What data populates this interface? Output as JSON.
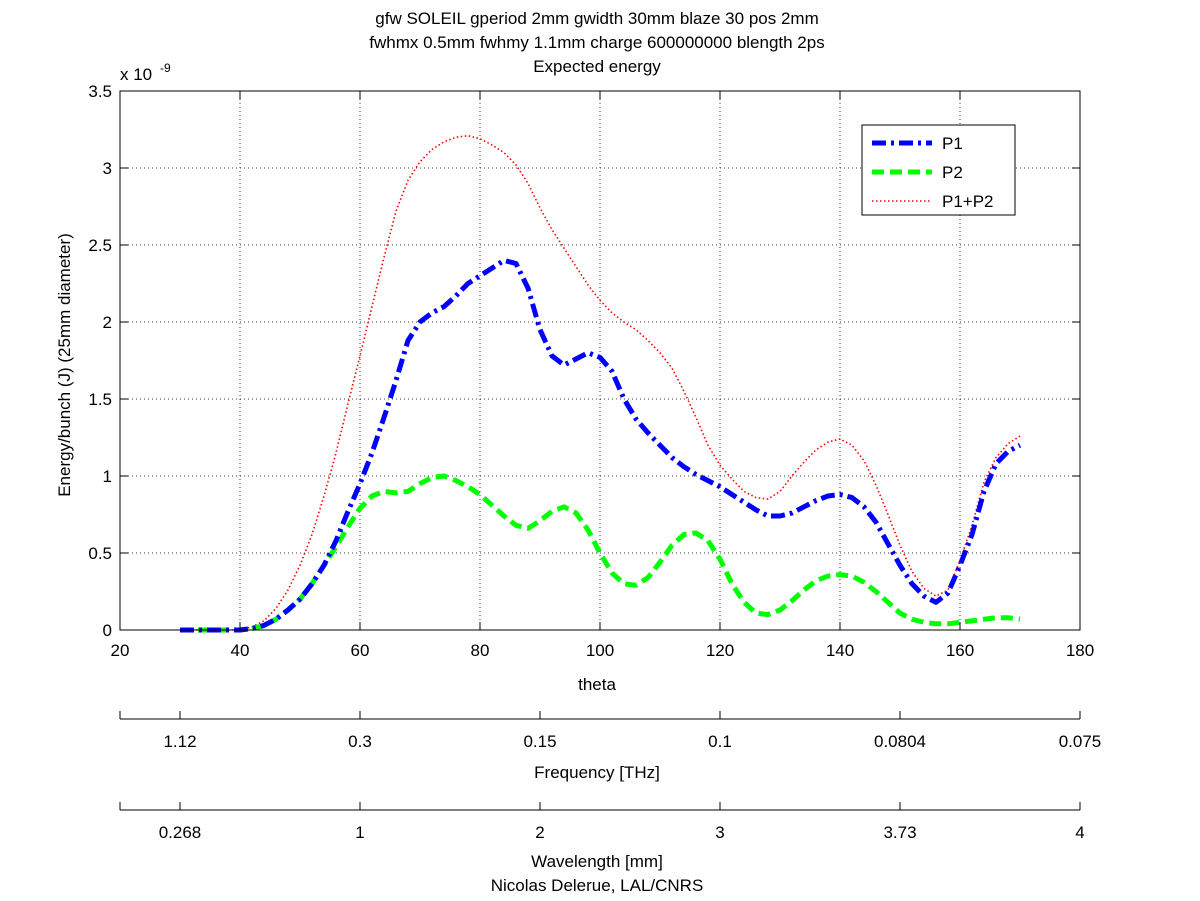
{
  "chart_data": {
    "type": "line",
    "title_lines": [
      "gfw SOLEIL gperiod 2mm gwidth 30mm blaze 30 pos 2mm",
      "fwhmx 0.5mm fwhmy 1.1mm charge 600000000 blength 2ps",
      "Expected energy"
    ],
    "xlabel": "theta",
    "ylabel": "Energy/bunch (J)  (25mm diameter)",
    "y_multiplier_base": "x 10",
    "y_multiplier_exp": "-9",
    "xlim": [
      20,
      180
    ],
    "ylim": [
      0,
      3.5
    ],
    "x_ticks": [
      20,
      40,
      60,
      80,
      100,
      120,
      140,
      160,
      180
    ],
    "x_tick_labels": [
      "20",
      "40",
      "60",
      "80",
      "100",
      "120",
      "140",
      "160",
      "180"
    ],
    "y_ticks": [
      0,
      0.5,
      1,
      1.5,
      2,
      2.5,
      3,
      3.5
    ],
    "y_tick_labels": [
      "0",
      "0.5",
      "1",
      "1.5",
      "2",
      "2.5",
      "3",
      "3.5"
    ],
    "grid": true,
    "legend_position": "top-right",
    "series": [
      {
        "name": "P1",
        "color": "#0000ff",
        "style": "dashdot",
        "x": [
          30,
          35,
          40,
          42,
          44,
          46,
          48,
          50,
          52,
          54,
          56,
          58,
          60,
          62,
          64,
          66,
          68,
          70,
          72,
          74,
          76,
          78,
          80,
          82,
          84,
          86,
          88,
          90,
          92,
          94,
          96,
          98,
          100,
          102,
          104,
          106,
          108,
          110,
          112,
          114,
          116,
          118,
          120,
          122,
          124,
          126,
          128,
          130,
          132,
          134,
          136,
          138,
          140,
          142,
          144,
          146,
          148,
          150,
          152,
          154,
          156,
          158,
          160,
          162,
          164,
          166,
          168,
          170
        ],
        "y": [
          0,
          0,
          0,
          0.01,
          0.03,
          0.07,
          0.13,
          0.2,
          0.3,
          0.42,
          0.58,
          0.77,
          0.95,
          1.15,
          1.38,
          1.62,
          1.88,
          2.0,
          2.06,
          2.1,
          2.17,
          2.25,
          2.3,
          2.35,
          2.4,
          2.38,
          2.22,
          1.95,
          1.78,
          1.72,
          1.76,
          1.8,
          1.77,
          1.68,
          1.5,
          1.37,
          1.28,
          1.2,
          1.12,
          1.06,
          1.01,
          0.97,
          0.93,
          0.88,
          0.83,
          0.78,
          0.74,
          0.74,
          0.76,
          0.8,
          0.84,
          0.87,
          0.88,
          0.86,
          0.8,
          0.7,
          0.56,
          0.42,
          0.3,
          0.22,
          0.18,
          0.24,
          0.42,
          0.62,
          0.9,
          1.08,
          1.16,
          1.2
        ]
      },
      {
        "name": "P2",
        "color": "#00ff00",
        "style": "dashed",
        "x": [
          30,
          35,
          40,
          42,
          44,
          46,
          48,
          50,
          52,
          54,
          56,
          58,
          60,
          62,
          64,
          66,
          68,
          70,
          72,
          74,
          76,
          78,
          80,
          82,
          84,
          86,
          88,
          90,
          92,
          94,
          96,
          98,
          100,
          102,
          104,
          106,
          108,
          110,
          112,
          114,
          116,
          118,
          120,
          122,
          124,
          126,
          128,
          130,
          132,
          134,
          136,
          138,
          140,
          142,
          144,
          146,
          148,
          150,
          152,
          154,
          156,
          158,
          160,
          162,
          164,
          166,
          168,
          170
        ],
        "y": [
          0,
          0,
          0,
          0.01,
          0.03,
          0.07,
          0.13,
          0.2,
          0.3,
          0.42,
          0.54,
          0.67,
          0.79,
          0.87,
          0.9,
          0.89,
          0.9,
          0.95,
          0.99,
          1.0,
          0.97,
          0.93,
          0.88,
          0.81,
          0.74,
          0.68,
          0.66,
          0.71,
          0.77,
          0.8,
          0.76,
          0.65,
          0.5,
          0.37,
          0.3,
          0.29,
          0.34,
          0.44,
          0.55,
          0.62,
          0.63,
          0.58,
          0.46,
          0.3,
          0.18,
          0.11,
          0.1,
          0.13,
          0.19,
          0.26,
          0.32,
          0.35,
          0.36,
          0.35,
          0.31,
          0.25,
          0.18,
          0.11,
          0.07,
          0.05,
          0.04,
          0.04,
          0.05,
          0.06,
          0.07,
          0.08,
          0.08,
          0.07
        ]
      },
      {
        "name": "P1+P2",
        "color": "#ff0000",
        "style": "dotted",
        "x": [
          30,
          35,
          40,
          42,
          44,
          46,
          48,
          50,
          52,
          54,
          56,
          58,
          60,
          62,
          64,
          66,
          68,
          70,
          72,
          74,
          76,
          78,
          80,
          82,
          84,
          86,
          88,
          90,
          92,
          94,
          96,
          98,
          100,
          102,
          104,
          106,
          108,
          110,
          112,
          114,
          116,
          118,
          120,
          122,
          124,
          126,
          128,
          130,
          132,
          134,
          136,
          138,
          140,
          142,
          144,
          146,
          148,
          150,
          152,
          154,
          156,
          158,
          160,
          162,
          164,
          166,
          168,
          170
        ],
        "y": [
          0,
          0,
          0,
          0.02,
          0.06,
          0.14,
          0.26,
          0.42,
          0.62,
          0.87,
          1.15,
          1.47,
          1.78,
          2.1,
          2.42,
          2.72,
          2.92,
          3.04,
          3.12,
          3.17,
          3.2,
          3.21,
          3.19,
          3.15,
          3.1,
          3.02,
          2.9,
          2.74,
          2.6,
          2.48,
          2.36,
          2.24,
          2.14,
          2.06,
          2.0,
          1.95,
          1.88,
          1.8,
          1.7,
          1.55,
          1.38,
          1.2,
          1.07,
          0.98,
          0.9,
          0.86,
          0.85,
          0.9,
          1.0,
          1.09,
          1.17,
          1.22,
          1.24,
          1.2,
          1.1,
          0.94,
          0.75,
          0.55,
          0.38,
          0.27,
          0.22,
          0.26,
          0.45,
          0.68,
          0.96,
          1.12,
          1.21,
          1.26
        ]
      }
    ]
  },
  "frequency_axis": {
    "label": "Frequency [THz]",
    "ticks_theta": [
      20,
      30,
      60,
      90,
      120,
      150,
      180
    ],
    "tick_labels": [
      "",
      "1.12",
      "0.3",
      "0.15",
      "0.1",
      "0.0804",
      "0.075"
    ]
  },
  "wavelength_axis": {
    "label": "Wavelength [mm]",
    "ticks_theta": [
      20,
      30,
      60,
      90,
      120,
      150,
      180
    ],
    "tick_labels": [
      "",
      "0.268",
      "1",
      "2",
      "3",
      "3.73",
      "4"
    ]
  },
  "credit": "Nicolas Delerue, LAL/CNRS"
}
